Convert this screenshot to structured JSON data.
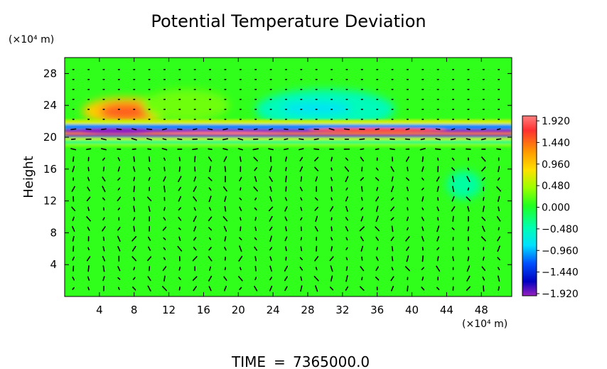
{
  "chart_data": {
    "type": "heatmap",
    "title": "Potential Temperature Deviation",
    "ylabel": "Height",
    "y_unit": "(×10⁴ m)",
    "x_unit": "(×10⁴ m)",
    "x_ticks": [
      "4",
      "8",
      "12",
      "16",
      "20",
      "24",
      "28",
      "32",
      "36",
      "40",
      "44",
      "48"
    ],
    "y_ticks": [
      "4",
      "8",
      "12",
      "16",
      "20",
      "24",
      "28"
    ],
    "xlim": [
      0,
      51.5
    ],
    "ylim": [
      0,
      30
    ],
    "colorbar": {
      "labels": [
        "1.920",
        "1.440",
        "0.960",
        "0.480",
        "0.000",
        "−0.480",
        "−0.960",
        "−1.440",
        "−1.920"
      ],
      "range": [
        -1.92,
        1.92
      ]
    },
    "features": {
      "background_value": 0.05,
      "warm_region": {
        "x": [
          2,
          12
        ],
        "y": [
          21.5,
          25
        ],
        "value": 0.9
      },
      "cool_region": {
        "x": [
          22,
          38
        ],
        "y": [
          21,
          26
        ],
        "value": -0.5
      },
      "layer_band": {
        "y": [
          19,
          21.5
        ],
        "max_value": 1.9,
        "min_value": -1.9
      }
    },
    "has_vector_field": true
  },
  "footer": {
    "time_label": "TIME",
    "time_eq": "=",
    "time_value": "7365000.0"
  }
}
